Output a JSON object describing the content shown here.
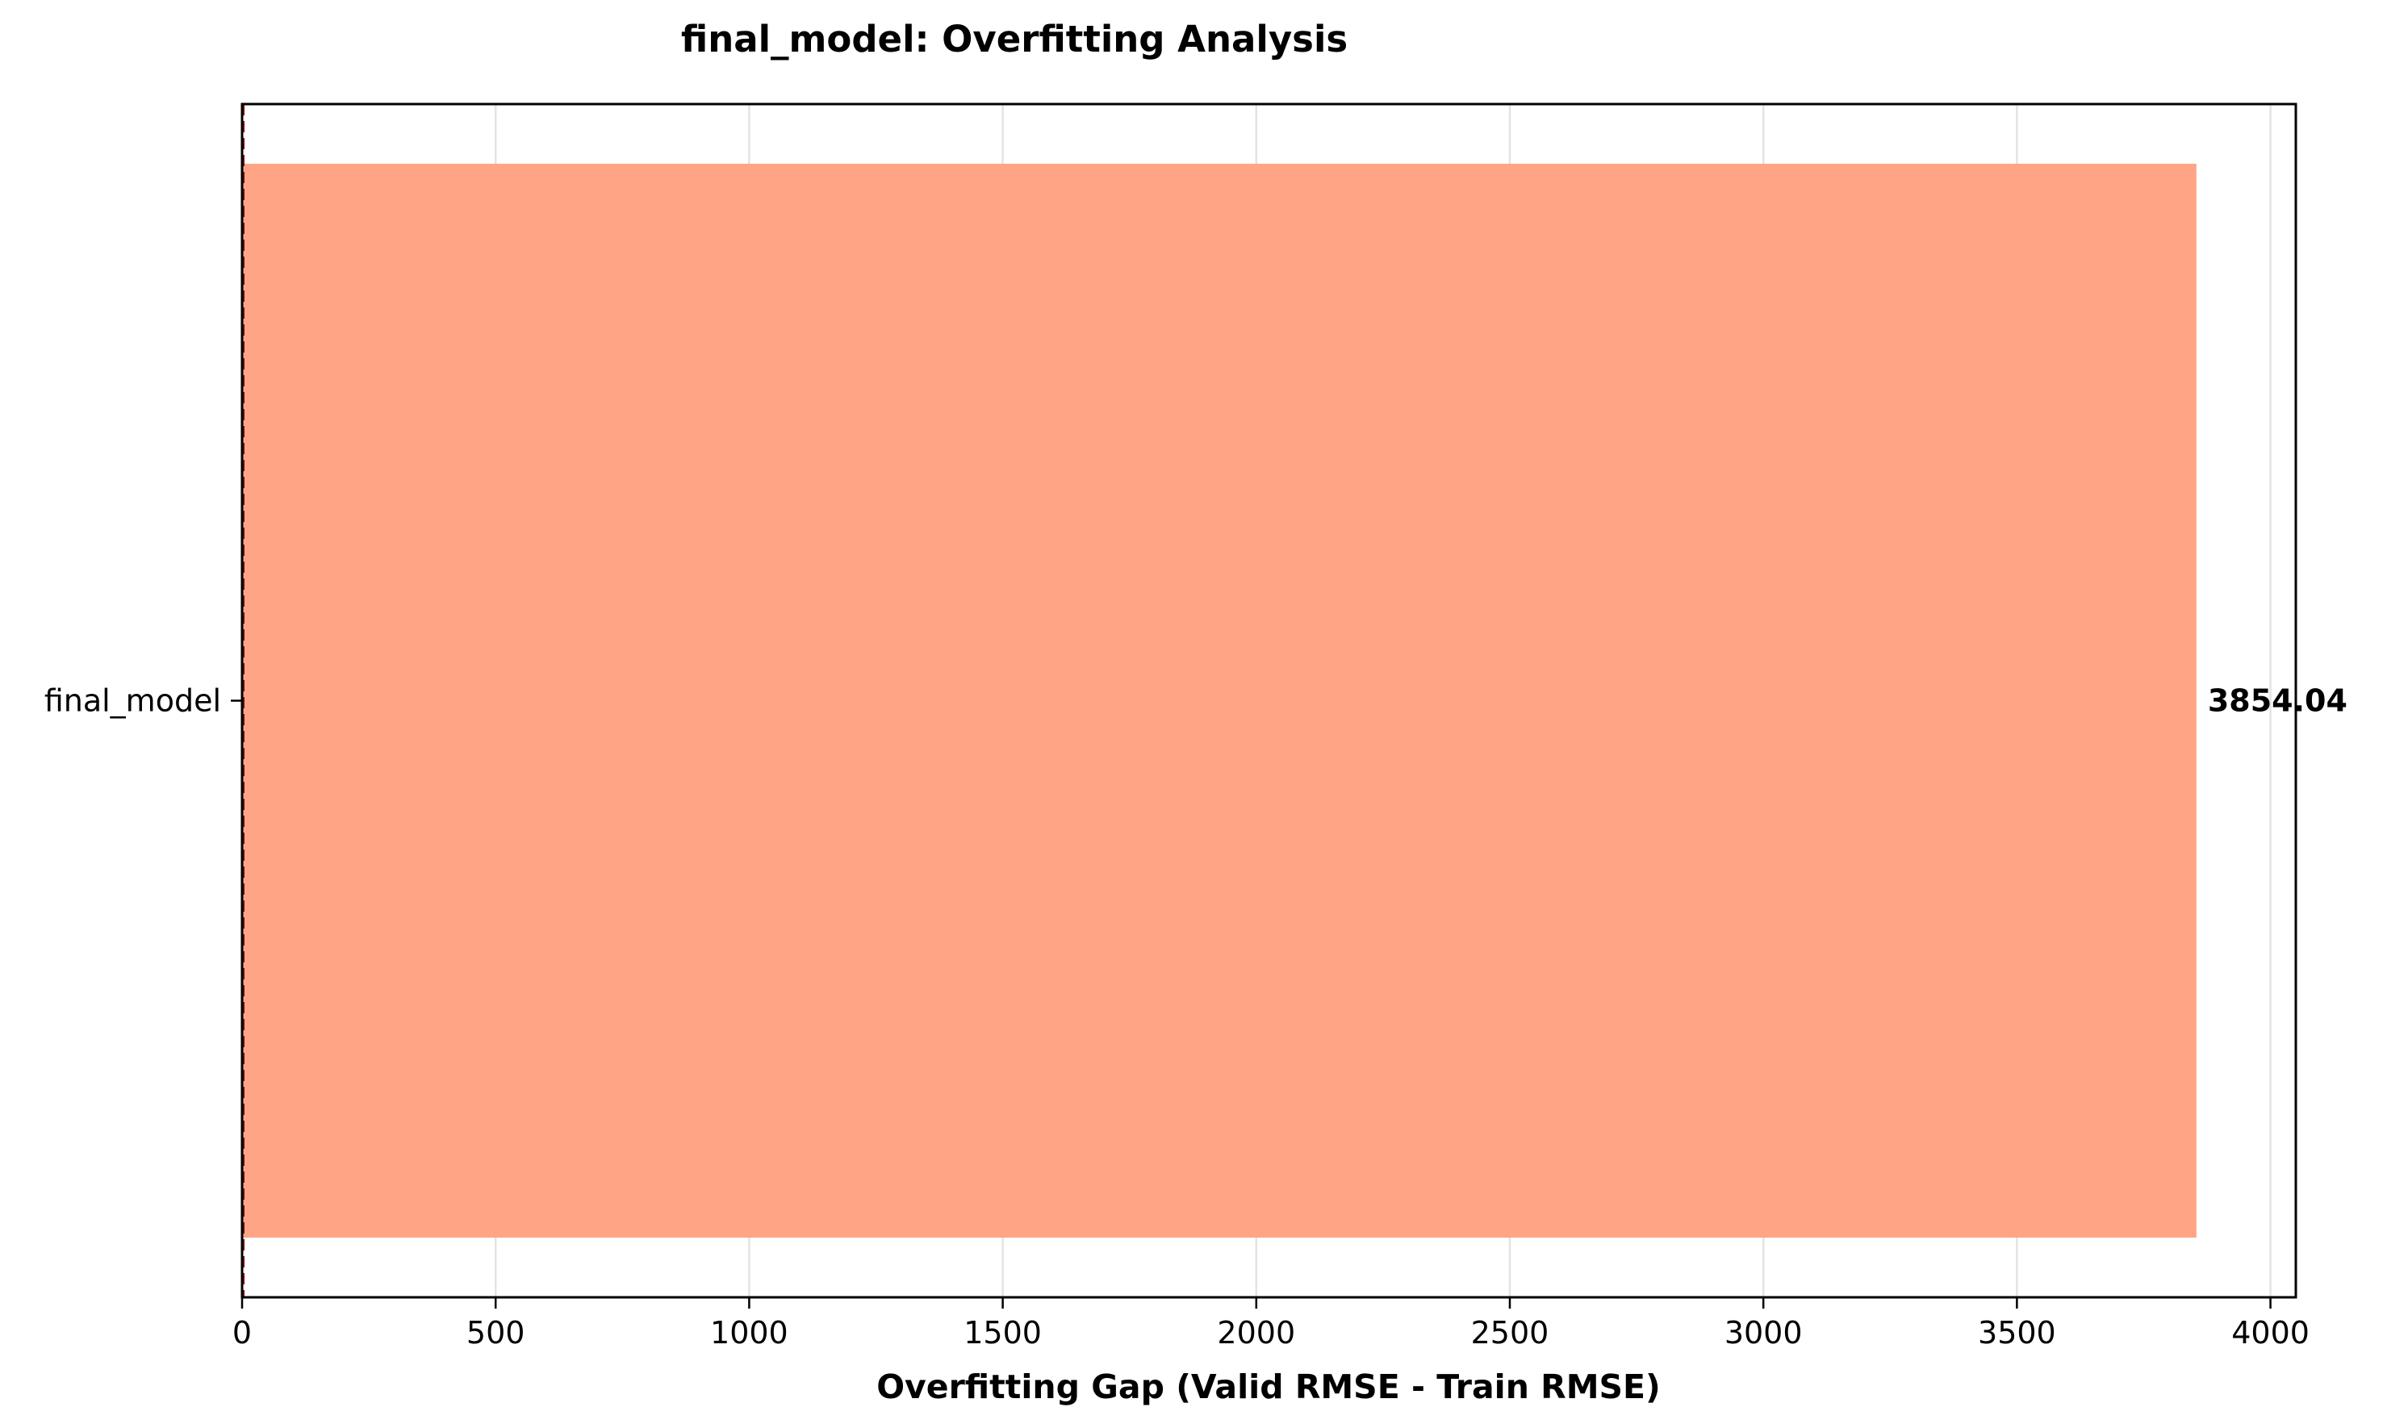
{
  "chart_data": {
    "type": "bar",
    "orientation": "horizontal",
    "title": "final_model: Overfitting Analysis",
    "xlabel": "Overfitting Gap (Valid RMSE - Train RMSE)",
    "ylabel": "",
    "categories": [
      "final_model"
    ],
    "values": [
      3854.04
    ],
    "value_labels": [
      "3854.04"
    ],
    "xlim": [
      0,
      4050
    ],
    "xticks": [
      0,
      500,
      1000,
      1500,
      2000,
      2500,
      3000,
      3500,
      4000
    ],
    "xtick_labels": [
      "0",
      "500",
      "1000",
      "1500",
      "2000",
      "2500",
      "3000",
      "3500",
      "4000"
    ],
    "grid": "x",
    "reference_line": {
      "x": 0,
      "style": "dashed",
      "color": "#8b0000"
    },
    "colors": {
      "bar": "#ffa586",
      "grid": "#e3e3e3",
      "axis": "#000000"
    },
    "legend": "none"
  }
}
